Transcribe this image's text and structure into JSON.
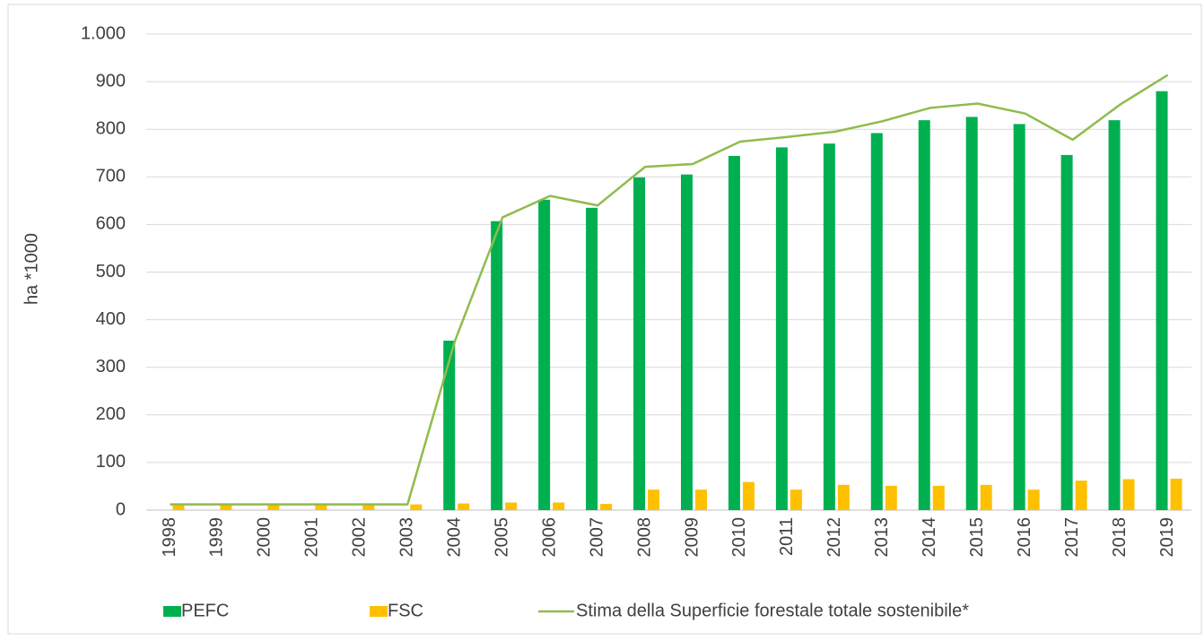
{
  "chart_data": {
    "type": "bar",
    "y_label": "ha *1000",
    "categories": [
      "1998",
      "1999",
      "2000",
      "2001",
      "2002",
      "2003",
      "2004",
      "2005",
      "2006",
      "2007",
      "2008",
      "2009",
      "2010",
      "2011",
      "2012",
      "2013",
      "2014",
      "2015",
      "2016",
      "2017",
      "2018",
      "2019"
    ],
    "series": [
      {
        "name": "PEFC",
        "color": "#00b050",
        "type": "bar",
        "values": [
          0,
          0,
          0,
          0,
          0,
          0,
          356,
          607,
          652,
          635,
          699,
          705,
          744,
          762,
          770,
          792,
          819,
          826,
          811,
          746,
          819,
          880
        ]
      },
      {
        "name": "FSC",
        "color": "#ffc000",
        "type": "bar",
        "values": [
          12,
          12,
          12,
          12,
          12,
          12,
          14,
          16,
          16,
          13,
          43,
          43,
          59,
          43,
          53,
          51,
          51,
          53,
          43,
          62,
          65,
          66
        ]
      },
      {
        "name": "Stima della Superficie forestale totale sostenibile*",
        "color": "#8fbc4c",
        "type": "line",
        "values": [
          12,
          12,
          12,
          12,
          12,
          12,
          356,
          615,
          660,
          640,
          721,
          727,
          774,
          784,
          795,
          817,
          845,
          854,
          833,
          778,
          852,
          914
        ]
      }
    ],
    "ylim": [
      0,
      1000
    ],
    "yticks": [
      0,
      100,
      200,
      300,
      400,
      500,
      600,
      700,
      800,
      900,
      {
        "value": 1000,
        "label": "1.000"
      }
    ],
    "grid": true,
    "legend": "bottom"
  }
}
